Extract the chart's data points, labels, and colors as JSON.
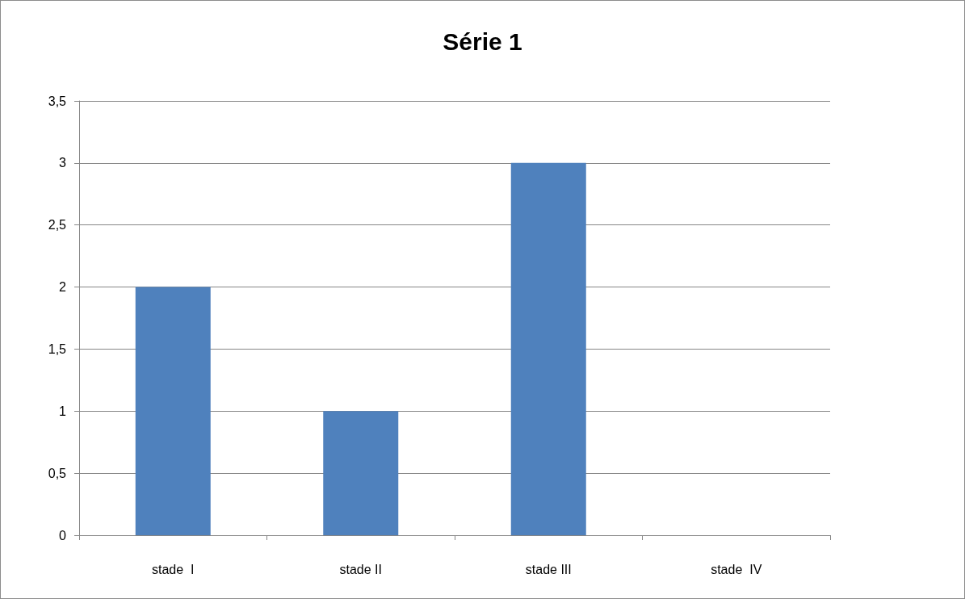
{
  "chart_data": {
    "type": "bar",
    "title": "Série 1",
    "categories": [
      "stade  I",
      "stade II",
      "stade III",
      "stade  IV"
    ],
    "values": [
      2,
      1,
      3,
      0
    ],
    "color": "#4f81bd",
    "ylim": [
      0,
      3.5
    ],
    "yticks": [
      0,
      {
        "value": 0.5,
        "label": "0,5"
      },
      1,
      {
        "value": 1.5,
        "label": "1,5"
      },
      2,
      {
        "value": 2.5,
        "label": "2,5"
      },
      3,
      {
        "value": 3.5,
        "label": "3,5"
      }
    ],
    "grid": "y"
  }
}
